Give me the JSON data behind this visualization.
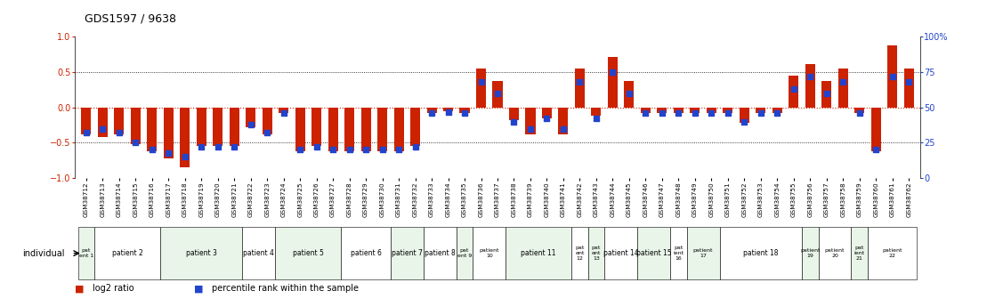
{
  "title": "GDS1597 / 9638",
  "samples": [
    "GSM38712",
    "GSM38713",
    "GSM38714",
    "GSM38715",
    "GSM38716",
    "GSM38717",
    "GSM38718",
    "GSM38719",
    "GSM38720",
    "GSM38721",
    "GSM38722",
    "GSM38723",
    "GSM38724",
    "GSM38725",
    "GSM38726",
    "GSM38727",
    "GSM38728",
    "GSM38729",
    "GSM38730",
    "GSM38731",
    "GSM38732",
    "GSM38733",
    "GSM38734",
    "GSM38735",
    "GSM38736",
    "GSM38737",
    "GSM38738",
    "GSM38739",
    "GSM38740",
    "GSM38741",
    "GSM38742",
    "GSM38743",
    "GSM38744",
    "GSM38745",
    "GSM38746",
    "GSM38747",
    "GSM38748",
    "GSM38749",
    "GSM38750",
    "GSM38751",
    "GSM38752",
    "GSM38753",
    "GSM38754",
    "GSM38755",
    "GSM38756",
    "GSM38757",
    "GSM38758",
    "GSM38759",
    "GSM38760",
    "GSM38761",
    "GSM38762"
  ],
  "log2_ratio": [
    -0.38,
    -0.42,
    -0.38,
    -0.52,
    -0.62,
    -0.72,
    -0.85,
    -0.55,
    -0.55,
    -0.55,
    -0.28,
    -0.38,
    -0.08,
    -0.62,
    -0.55,
    -0.62,
    -0.62,
    -0.62,
    -0.62,
    -0.62,
    -0.55,
    -0.08,
    -0.05,
    -0.08,
    0.55,
    0.38,
    -0.18,
    -0.38,
    -0.15,
    -0.38,
    0.55,
    -0.12,
    0.72,
    0.38,
    -0.08,
    -0.08,
    -0.08,
    -0.08,
    -0.08,
    -0.08,
    -0.22,
    -0.08,
    -0.08,
    0.45,
    0.62,
    0.38,
    0.55,
    -0.08,
    -0.62,
    0.88,
    0.55
  ],
  "percentile_rank": [
    32,
    35,
    32,
    25,
    20,
    18,
    15,
    22,
    22,
    22,
    38,
    32,
    46,
    20,
    22,
    20,
    20,
    20,
    20,
    20,
    22,
    46,
    47,
    46,
    68,
    60,
    40,
    35,
    42,
    35,
    68,
    42,
    75,
    60,
    46,
    46,
    46,
    46,
    46,
    46,
    40,
    46,
    46,
    63,
    72,
    60,
    68,
    46,
    20,
    72,
    68
  ],
  "patients": [
    {
      "label": "pat\nent 1",
      "start": 0,
      "end": 0,
      "color": "#e8f5e8"
    },
    {
      "label": "patient 2",
      "start": 1,
      "end": 4,
      "color": "#ffffff"
    },
    {
      "label": "patient 3",
      "start": 5,
      "end": 9,
      "color": "#e8f5e8"
    },
    {
      "label": "patient 4",
      "start": 10,
      "end": 11,
      "color": "#ffffff"
    },
    {
      "label": "patient 5",
      "start": 12,
      "end": 15,
      "color": "#e8f5e8"
    },
    {
      "label": "patient 6",
      "start": 16,
      "end": 18,
      "color": "#ffffff"
    },
    {
      "label": "patient 7",
      "start": 19,
      "end": 20,
      "color": "#e8f5e8"
    },
    {
      "label": "patient 8",
      "start": 21,
      "end": 22,
      "color": "#ffffff"
    },
    {
      "label": "pat\nent 9",
      "start": 23,
      "end": 23,
      "color": "#e8f5e8"
    },
    {
      "label": "patient\n10",
      "start": 24,
      "end": 25,
      "color": "#ffffff"
    },
    {
      "label": "patient 11",
      "start": 26,
      "end": 29,
      "color": "#e8f5e8"
    },
    {
      "label": "pat\nent\n12",
      "start": 30,
      "end": 30,
      "color": "#ffffff"
    },
    {
      "label": "pat\nent\n13",
      "start": 31,
      "end": 31,
      "color": "#e8f5e8"
    },
    {
      "label": "patient 14",
      "start": 32,
      "end": 33,
      "color": "#ffffff"
    },
    {
      "label": "patient 15",
      "start": 34,
      "end": 35,
      "color": "#e8f5e8"
    },
    {
      "label": "pat\nient\n16",
      "start": 36,
      "end": 36,
      "color": "#ffffff"
    },
    {
      "label": "patient\n17",
      "start": 37,
      "end": 38,
      "color": "#e8f5e8"
    },
    {
      "label": "patient 18",
      "start": 39,
      "end": 43,
      "color": "#ffffff"
    },
    {
      "label": "patient\n19",
      "start": 44,
      "end": 44,
      "color": "#e8f5e8"
    },
    {
      "label": "patient\n20",
      "start": 45,
      "end": 46,
      "color": "#ffffff"
    },
    {
      "label": "pat\nient\n21",
      "start": 47,
      "end": 47,
      "color": "#e8f5e8"
    },
    {
      "label": "patient\n22",
      "start": 48,
      "end": 50,
      "color": "#ffffff"
    }
  ],
  "bar_color": "#cc2200",
  "dot_color": "#2244cc",
  "ylabel_left_color": "#cc2200",
  "ylabel_right_color": "#2244cc",
  "background_color": "#ffffff",
  "ylim": [
    -1.0,
    1.0
  ],
  "yticks_left": [
    -1.0,
    -0.5,
    0.0,
    0.5,
    1.0
  ],
  "yticks_right_labels": [
    "0",
    "25",
    "50",
    "75",
    "100%"
  ]
}
